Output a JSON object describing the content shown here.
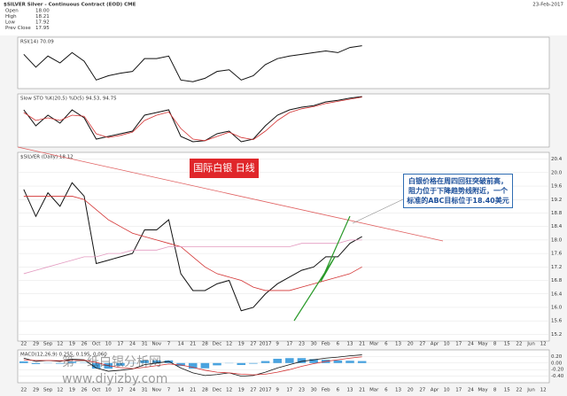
{
  "header": {
    "symbol": "$SILVER Silver - Continuous Contract (EOD) CME",
    "date": "23-Feb-2017",
    "quote": [
      [
        "Open",
        "18.00"
      ],
      [
        "High",
        "18.21"
      ],
      [
        "Low",
        "17.92"
      ],
      [
        "Prev Close",
        "17.95"
      ]
    ]
  },
  "watermark": [
    "第一纸白银分析网",
    "www.diyizby.com"
  ],
  "chart_data": [
    {
      "type": "line",
      "title": "$SILVER (Daily) 18.12",
      "categories": [
        "22",
        "29",
        "Sep",
        "12",
        "19",
        "26",
        "Oct",
        "10",
        "17",
        "24",
        "31",
        "Nov",
        "7",
        "14",
        "21",
        "28",
        "Dec",
        "12",
        "19",
        "27",
        "2017",
        "9",
        "17",
        "23",
        "30",
        "Feb",
        "6",
        "13",
        "21",
        "Mar",
        "6",
        "13",
        "20",
        "27",
        "Apr",
        "10",
        "17",
        "24",
        "May",
        "8",
        "15",
        "22",
        "Jun",
        "12"
      ],
      "series": [
        {
          "color": "#111111",
          "values": [
            19.5,
            18.7,
            19.4,
            19.0,
            19.7,
            19.3,
            17.3,
            17.4,
            17.5,
            17.6,
            18.3,
            18.3,
            18.6,
            17.0,
            16.5,
            16.5,
            16.7,
            16.8,
            15.9,
            16.0,
            16.4,
            16.7,
            16.9,
            17.1,
            17.2,
            17.5,
            17.5,
            17.9,
            18.1,
            null,
            null,
            null,
            null,
            null,
            null,
            null,
            null,
            null,
            null,
            null,
            null,
            null,
            null,
            null
          ]
        },
        {
          "color": "#d33333",
          "values": [
            19.3,
            19.3,
            19.3,
            19.3,
            19.3,
            19.2,
            18.9,
            18.6,
            18.4,
            18.2,
            18.1,
            18.0,
            17.9,
            17.8,
            17.5,
            17.2,
            17.0,
            16.9,
            16.8,
            16.6,
            16.5,
            16.5,
            16.5,
            16.6,
            16.7,
            16.8,
            16.9,
            17.0,
            17.2,
            null,
            null,
            null,
            null,
            null,
            null,
            null,
            null,
            null,
            null,
            null,
            null,
            null,
            null,
            null
          ]
        },
        {
          "color": "#e39ac0",
          "values": [
            17.0,
            17.1,
            17.2,
            17.3,
            17.4,
            17.5,
            17.5,
            17.6,
            17.6,
            17.7,
            17.7,
            17.7,
            17.8,
            17.8,
            17.8,
            17.8,
            17.8,
            17.8,
            17.8,
            17.8,
            17.8,
            17.8,
            17.8,
            17.9,
            17.9,
            17.9,
            17.9,
            18.0,
            18.0,
            null,
            null,
            null,
            null,
            null,
            null,
            null,
            null,
            null,
            null,
            null,
            null,
            null,
            null,
            null
          ]
        }
      ],
      "ylim": [
        15.0,
        20.6
      ],
      "yticks": [
        {
          "value": 15.2,
          "label": "15.2"
        },
        {
          "value": 15.6,
          "label": "15.6"
        },
        {
          "value": 16,
          "label": "16.0"
        },
        {
          "value": 16.4,
          "label": "16.4"
        },
        {
          "value": 16.8,
          "label": "16.8"
        },
        {
          "value": 17.2,
          "label": "17.2"
        },
        {
          "value": 17.6,
          "label": "17.6"
        },
        {
          "value": 18,
          "label": "18.0"
        },
        {
          "value": 18.4,
          "label": "18.4"
        },
        {
          "value": 18.8,
          "label": "18.8"
        },
        {
          "value": 19.2,
          "label": "19.2"
        },
        {
          "value": 19.6,
          "label": "19.6"
        },
        {
          "value": 20,
          "label": "20.0"
        },
        {
          "value": 20.4,
          "label": "20.4"
        }
      ],
      "grid": true,
      "box_label": "国际白银 日线",
      "note": "白银价格在周四回狂突破前高，阻力位于下降趋势线附近，一个标准的ABC目标位于18.40美元"
    },
    {
      "type": "line",
      "title": "RSI(14) 70.09",
      "series": [
        {
          "color": "#111111",
          "values": [
            60,
            45,
            58,
            50,
            62,
            52,
            30,
            35,
            38,
            40,
            55,
            55,
            58,
            30,
            28,
            32,
            40,
            42,
            30,
            35,
            48,
            55,
            58,
            60,
            62,
            64,
            62,
            68,
            70,
            null,
            null,
            null,
            null,
            null,
            null,
            null,
            null,
            null,
            null,
            null,
            null,
            null,
            null,
            null
          ]
        }
      ],
      "ylim": [
        20,
        80
      ]
    },
    {
      "type": "line",
      "title": "Slow STO %K(20,5) %D(5) 94.53, 94.75",
      "series": [
        {
          "color": "#111111",
          "values": [
            70,
            40,
            60,
            45,
            70,
            55,
            15,
            20,
            25,
            30,
            60,
            65,
            70,
            20,
            10,
            12,
            25,
            30,
            10,
            15,
            40,
            60,
            70,
            75,
            78,
            85,
            88,
            92,
            95,
            null,
            null,
            null,
            null,
            null,
            null,
            null,
            null,
            null,
            null,
            null,
            null,
            null,
            null,
            null
          ]
        },
        {
          "color": "#d33333",
          "values": [
            65,
            50,
            55,
            50,
            60,
            58,
            25,
            18,
            22,
            28,
            50,
            60,
            66,
            35,
            15,
            12,
            20,
            28,
            18,
            14,
            30,
            50,
            65,
            72,
            76,
            82,
            86,
            90,
            94,
            null,
            null,
            null,
            null,
            null,
            null,
            null,
            null,
            null,
            null,
            null,
            null,
            null,
            null,
            null
          ]
        }
      ],
      "ylim": [
        0,
        100
      ]
    },
    {
      "type": "line",
      "title": "MACD(12,26,9) 0.255, 0.195, 0.060",
      "series": [
        {
          "color": "#4aa3df",
          "style": "bar",
          "values": [
            0.05,
            -0.03,
            0,
            -0.02,
            0.04,
            0.01,
            -0.17,
            -0.17,
            -0.08,
            -0.01,
            0.08,
            0.08,
            0.08,
            -0.09,
            -0.17,
            -0.16,
            -0.07,
            0,
            -0.06,
            -0.02,
            0.06,
            0.13,
            0.15,
            0.15,
            0.12,
            0.1,
            0.08,
            0.07,
            0.06,
            null,
            null,
            null,
            null,
            null,
            null,
            null,
            null,
            null,
            null,
            null,
            null,
            null,
            null,
            null
          ]
        },
        {
          "color": "#111111",
          "values": [
            0.15,
            0.05,
            0.08,
            0.05,
            0.12,
            0.1,
            -0.15,
            -0.25,
            -0.22,
            -0.18,
            -0.05,
            0.0,
            0.05,
            -0.15,
            -0.3,
            -0.38,
            -0.35,
            -0.3,
            -0.4,
            -0.38,
            -0.28,
            -0.15,
            -0.05,
            0.05,
            0.1,
            0.15,
            0.18,
            0.22,
            0.25,
            null,
            null,
            null,
            null,
            null,
            null,
            null,
            null,
            null,
            null,
            null,
            null,
            null,
            null,
            null
          ]
        },
        {
          "color": "#d33333",
          "values": [
            0.1,
            0.08,
            0.08,
            0.07,
            0.08,
            0.09,
            0.02,
            -0.08,
            -0.14,
            -0.17,
            -0.13,
            -0.08,
            -0.03,
            -0.06,
            -0.13,
            -0.22,
            -0.28,
            -0.3,
            -0.34,
            -0.36,
            -0.34,
            -0.28,
            -0.2,
            -0.1,
            -0.02,
            0.05,
            0.1,
            0.15,
            0.19,
            null,
            null,
            null,
            null,
            null,
            null,
            null,
            null,
            null,
            null,
            null,
            null,
            null,
            null,
            null
          ]
        }
      ],
      "ylim": [
        -0.6,
        0.4
      ],
      "yticks": [
        {
          "value": -0.4,
          "label": "-0.40"
        },
        {
          "value": -0.2,
          "label": "-0.20"
        },
        {
          "value": 0,
          "label": "0.00"
        },
        {
          "value": 0.2,
          "label": "0.20"
        }
      ],
      "grid": true
    }
  ]
}
